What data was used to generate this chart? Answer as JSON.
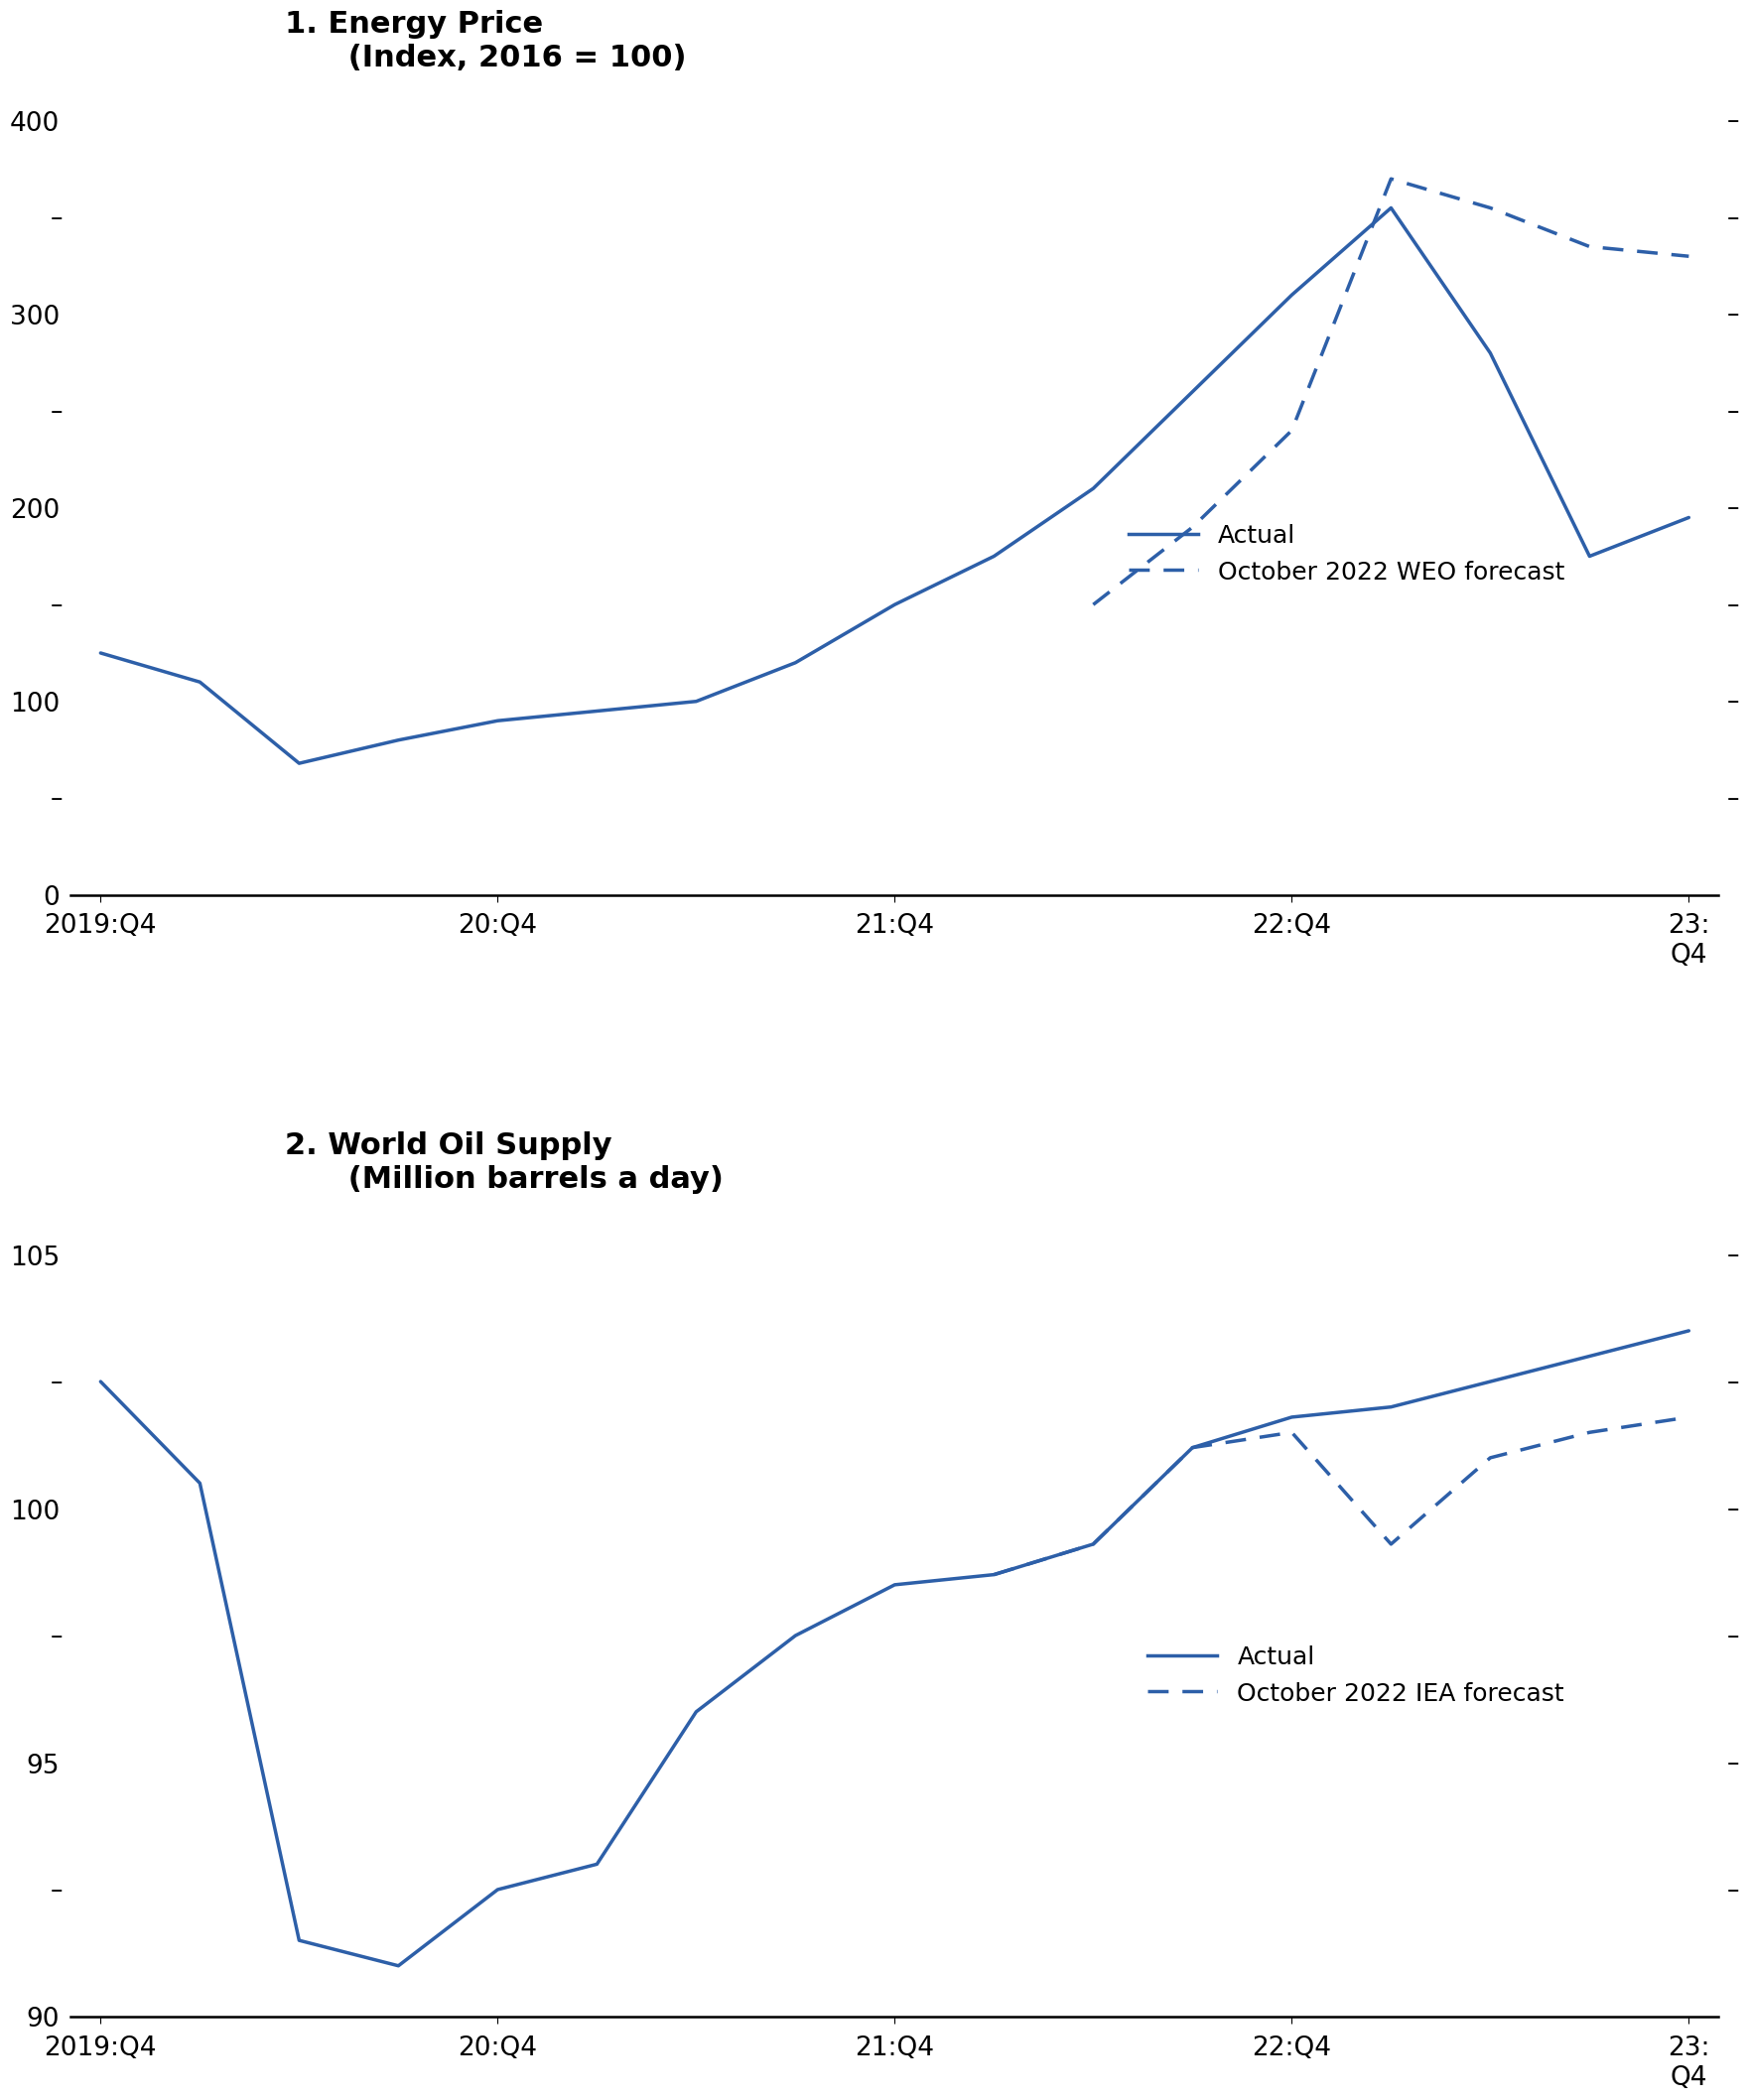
{
  "chart1": {
    "title_line1": "1. Energy Price",
    "title_line2": "(Index, 2016 = 100)",
    "actual_x": [
      0,
      1,
      2,
      3,
      4,
      5,
      6,
      7,
      8,
      9,
      10,
      11,
      12,
      13,
      14,
      15,
      16
    ],
    "actual_y": [
      125,
      110,
      68,
      80,
      90,
      95,
      100,
      120,
      150,
      175,
      210,
      260,
      310,
      355,
      280,
      175,
      195
    ],
    "forecast_x": [
      10,
      11,
      12,
      13,
      14,
      15,
      16
    ],
    "forecast_y": [
      150,
      190,
      240,
      370,
      355,
      335,
      330
    ],
    "ylim": [
      0,
      420
    ],
    "yticks": [
      0,
      100,
      200,
      300,
      400
    ],
    "minor_yticks": [
      50,
      150,
      250,
      350
    ],
    "xtick_positions": [
      0,
      4,
      8,
      12,
      16
    ],
    "xtick_labels": [
      "2019:Q4",
      "20:Q4",
      "21:Q4",
      "22:Q4",
      "23:\nQ4"
    ],
    "legend_actual": "Actual",
    "legend_forecast": "October 2022 WEO forecast",
    "line_color": "#2d5fa8",
    "line_width": 2.5
  },
  "chart2": {
    "title_line1": "2. World Oil Supply",
    "title_line2": "(Million barrels a day)",
    "actual_x": [
      0,
      1,
      2,
      3,
      4,
      5,
      6,
      7,
      8,
      9,
      10,
      11,
      12,
      13,
      14,
      15,
      16
    ],
    "actual_y": [
      102.5,
      100.5,
      91.5,
      91.0,
      92.5,
      93.0,
      96.0,
      97.5,
      98.5,
      98.7,
      99.3,
      101.2,
      101.8,
      102.0,
      102.5,
      103.0,
      103.5
    ],
    "forecast_x": [
      9,
      10,
      11,
      12,
      13,
      14,
      15,
      16
    ],
    "forecast_y": [
      98.7,
      99.3,
      101.2,
      101.5,
      99.3,
      101.0,
      101.5,
      101.8
    ],
    "ylim": [
      90,
      106
    ],
    "yticks": [
      90,
      95,
      100,
      105
    ],
    "minor_yticks": [
      92.5,
      97.5,
      102.5
    ],
    "xtick_positions": [
      0,
      4,
      8,
      12,
      16
    ],
    "xtick_labels": [
      "2019:Q4",
      "20:Q4",
      "21:Q4",
      "22:Q4",
      "23:\nQ4"
    ],
    "legend_actual": "Actual",
    "legend_forecast": "October 2022 IEA forecast",
    "line_color": "#2d5fa8",
    "line_width": 2.5
  },
  "bg_color": "#ffffff",
  "text_color": "#000000",
  "title_fontsize": 22,
  "tick_fontsize": 19,
  "legend_fontsize": 18
}
